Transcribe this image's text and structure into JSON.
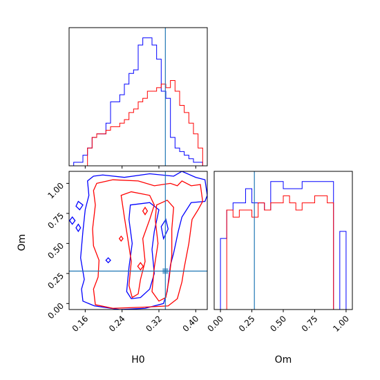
{
  "chart_data": [
    {
      "type": "histogram",
      "panel": "H0 marginal",
      "xlim": [
        0.125,
        0.425
      ],
      "xticks": [
        0.16,
        0.24,
        0.32,
        0.4
      ],
      "truth": 0.334,
      "series": [
        {
          "color": "#0000ff",
          "edges": [
            0.125,
            0.135,
            0.145,
            0.155,
            0.165,
            0.175,
            0.185,
            0.195,
            0.205,
            0.215,
            0.225,
            0.235,
            0.245,
            0.255,
            0.265,
            0.275,
            0.285,
            0.295,
            0.305,
            0.315,
            0.325,
            0.335,
            0.345,
            0.355,
            0.365,
            0.375,
            0.385,
            0.395,
            0.405,
            0.415,
            0.425
          ],
          "values": [
            0,
            1,
            1,
            3,
            5,
            8,
            9,
            9,
            12,
            18,
            18,
            20,
            23,
            26,
            27,
            34,
            36,
            36,
            34,
            30,
            21,
            19,
            8,
            5,
            4,
            3,
            2,
            1,
            1,
            0
          ]
        },
        {
          "color": "#ff0000",
          "edges": [
            0.125,
            0.135,
            0.145,
            0.155,
            0.165,
            0.175,
            0.185,
            0.195,
            0.205,
            0.215,
            0.225,
            0.235,
            0.245,
            0.255,
            0.265,
            0.275,
            0.285,
            0.295,
            0.305,
            0.315,
            0.325,
            0.335,
            0.345,
            0.355,
            0.365,
            0.375,
            0.385,
            0.395,
            0.405,
            0.415,
            0.425
          ],
          "values": [
            0,
            0,
            0,
            0,
            5,
            8,
            9,
            9,
            10,
            11,
            11,
            12,
            13,
            15,
            16,
            18,
            19,
            21,
            21,
            22,
            23,
            22,
            24,
            21,
            17,
            15,
            12,
            9,
            5,
            0
          ]
        }
      ]
    },
    {
      "type": "histogram",
      "panel": "Om marginal",
      "xlabel": "Om",
      "xlim": [
        -0.05,
        1.05
      ],
      "xticks": [
        0.0,
        0.25,
        0.5,
        0.75,
        1.0
      ],
      "ticklabels": [
        "0.00",
        "0.25",
        "0.50",
        "0.75",
        "1.00"
      ],
      "truth": 0.27,
      "series": [
        {
          "color": "#0000ff",
          "edges": [
            -0.05,
            0.0,
            0.05,
            0.1,
            0.15,
            0.2,
            0.25,
            0.3,
            0.35,
            0.4,
            0.45,
            0.5,
            0.55,
            0.6,
            0.65,
            0.7,
            0.75,
            0.8,
            0.85,
            0.9,
            0.95,
            1.0,
            1.05
          ],
          "values": [
            0,
            10,
            14,
            15,
            15,
            17,
            15,
            15,
            14,
            18,
            18,
            17,
            17,
            17,
            18,
            18,
            18,
            18,
            18,
            0,
            11,
            0
          ]
        },
        {
          "color": "#ff0000",
          "edges": [
            -0.05,
            0.0,
            0.05,
            0.1,
            0.15,
            0.2,
            0.25,
            0.3,
            0.35,
            0.4,
            0.45,
            0.5,
            0.55,
            0.6,
            0.65,
            0.7,
            0.75,
            0.8,
            0.85,
            0.9,
            0.95,
            1.0,
            1.05
          ],
          "values": [
            0,
            0,
            14,
            13,
            14,
            14,
            13,
            15,
            14,
            15,
            15,
            16,
            15,
            14,
            15,
            15,
            16,
            16,
            15,
            0,
            0,
            0
          ]
        }
      ]
    },
    {
      "type": "contour",
      "panel": "H0 vs Om",
      "xlabel": "H0",
      "ylabel": "Om",
      "xlim": [
        0.125,
        0.425
      ],
      "ylim": [
        -0.05,
        1.1
      ],
      "xticks": [
        0.16,
        0.24,
        0.32,
        0.4
      ],
      "yticks": [
        0.0,
        0.25,
        0.5,
        0.75,
        1.0
      ],
      "xticklabels": [
        "0.16",
        "0.24",
        "0.32",
        "0.40"
      ],
      "yticklabels": [
        "0.00",
        "0.25",
        "0.50",
        "0.75",
        "1.00"
      ],
      "truth": {
        "x": 0.334,
        "y": 0.27
      },
      "series": [
        {
          "color": "#0000ff",
          "contours": [
            [
              [
                0.178,
                1.06
              ],
              [
                0.198,
                1.07
              ],
              [
                0.245,
                1.05
              ],
              [
                0.3,
                1.08
              ],
              [
                0.352,
                1.06
              ],
              [
                0.37,
                1.1
              ],
              [
                0.4,
                1.05
              ],
              [
                0.42,
                1.03
              ],
              [
                0.425,
                0.9
              ],
              [
                0.42,
                0.85
              ],
              [
                0.39,
                0.84
              ],
              [
                0.37,
                0.72
              ],
              [
                0.362,
                0.6
              ],
              [
                0.352,
                0.42
              ],
              [
                0.345,
                0.32
              ],
              [
                0.338,
                0.1
              ],
              [
                0.33,
                0.0
              ],
              [
                0.29,
                -0.04
              ],
              [
                0.235,
                -0.05
              ],
              [
                0.18,
                -0.02
              ],
              [
                0.155,
                0.02
              ],
              [
                0.152,
                0.12
              ],
              [
                0.158,
                0.2
              ],
              [
                0.15,
                0.38
              ],
              [
                0.155,
                0.6
              ],
              [
                0.16,
                0.78
              ],
              [
                0.168,
                0.9
              ],
              [
                0.165,
                1.02
              ],
              [
                0.178,
                1.06
              ]
            ],
            [
              [
                0.148,
                0.78
              ],
              [
                0.155,
                0.82
              ],
              [
                0.145,
                0.85
              ],
              [
                0.14,
                0.81
              ],
              [
                0.148,
                0.78
              ]
            ],
            [
              [
                0.145,
                0.6
              ],
              [
                0.15,
                0.63
              ],
              [
                0.145,
                0.66
              ],
              [
                0.14,
                0.63
              ],
              [
                0.145,
                0.6
              ]
            ],
            [
              [
                0.132,
                0.66
              ],
              [
                0.138,
                0.69
              ],
              [
                0.132,
                0.72
              ],
              [
                0.126,
                0.69
              ],
              [
                0.132,
                0.66
              ]
            ],
            [
              [
                0.258,
                0.82
              ],
              [
                0.3,
                0.84
              ],
              [
                0.32,
                0.78
              ],
              [
                0.31,
                0.6
              ],
              [
                0.305,
                0.45
              ],
              [
                0.31,
                0.25
              ],
              [
                0.3,
                0.12
              ],
              [
                0.28,
                0.05
              ],
              [
                0.26,
                0.04
              ],
              [
                0.25,
                0.1
              ],
              [
                0.255,
                0.3
              ],
              [
                0.262,
                0.5
              ],
              [
                0.255,
                0.7
              ],
              [
                0.258,
                0.82
              ]
            ],
            [
              [
                0.33,
                0.54
              ],
              [
                0.34,
                0.62
              ],
              [
                0.335,
                0.7
              ],
              [
                0.325,
                0.64
              ],
              [
                0.33,
                0.54
              ]
            ],
            [
              [
                0.21,
                0.34
              ],
              [
                0.215,
                0.36
              ],
              [
                0.21,
                0.38
              ],
              [
                0.205,
                0.36
              ],
              [
                0.21,
                0.34
              ]
            ]
          ]
        },
        {
          "color": "#ff0000",
          "contours": [
            [
              [
                0.185,
                1.0
              ],
              [
                0.22,
                1.03
              ],
              [
                0.275,
                1.02
              ],
              [
                0.31,
                0.98
              ],
              [
                0.345,
                1.0
              ],
              [
                0.36,
                0.98
              ],
              [
                0.37,
                1.02
              ],
              [
                0.39,
                0.98
              ],
              [
                0.41,
                0.99
              ],
              [
                0.415,
                0.85
              ],
              [
                0.405,
                0.78
              ],
              [
                0.392,
                0.7
              ],
              [
                0.385,
                0.5
              ],
              [
                0.375,
                0.3
              ],
              [
                0.37,
                0.18
              ],
              [
                0.36,
                0.04
              ],
              [
                0.34,
                -0.02
              ],
              [
                0.29,
                -0.03
              ],
              [
                0.22,
                -0.04
              ],
              [
                0.182,
                -0.01
              ],
              [
                0.178,
                0.12
              ],
              [
                0.188,
                0.22
              ],
              [
                0.19,
                0.36
              ],
              [
                0.178,
                0.48
              ],
              [
                0.176,
                0.62
              ],
              [
                0.182,
                0.82
              ],
              [
                0.178,
                0.94
              ],
              [
                0.185,
                1.0
              ]
            ],
            [
              [
                0.238,
                0.9
              ],
              [
                0.26,
                0.93
              ],
              [
                0.3,
                0.9
              ],
              [
                0.31,
                0.82
              ],
              [
                0.3,
                0.7
              ],
              [
                0.285,
                0.54
              ],
              [
                0.29,
                0.35
              ],
              [
                0.28,
                0.2
              ],
              [
                0.275,
                0.08
              ],
              [
                0.262,
                0.05
              ],
              [
                0.255,
                0.15
              ],
              [
                0.26,
                0.35
              ],
              [
                0.252,
                0.55
              ],
              [
                0.245,
                0.72
              ],
              [
                0.238,
                0.9
              ]
            ],
            [
              [
                0.315,
                0.82
              ],
              [
                0.338,
                0.86
              ],
              [
                0.352,
                0.8
              ],
              [
                0.348,
                0.62
              ],
              [
                0.348,
                0.4
              ],
              [
                0.342,
                0.2
              ],
              [
                0.335,
                0.05
              ],
              [
                0.32,
                0.02
              ],
              [
                0.305,
                0.1
              ],
              [
                0.31,
                0.3
              ],
              [
                0.318,
                0.5
              ],
              [
                0.312,
                0.7
              ],
              [
                0.315,
                0.82
              ]
            ],
            [
              [
                0.29,
                0.74
              ],
              [
                0.295,
                0.77
              ],
              [
                0.29,
                0.8
              ],
              [
                0.285,
                0.77
              ],
              [
                0.29,
                0.74
              ]
            ],
            [
              [
                0.28,
                0.28
              ],
              [
                0.286,
                0.31
              ],
              [
                0.28,
                0.34
              ],
              [
                0.274,
                0.31
              ],
              [
                0.28,
                0.28
              ]
            ],
            [
              [
                0.238,
                0.52
              ],
              [
                0.242,
                0.54
              ],
              [
                0.238,
                0.56
              ],
              [
                0.234,
                0.54
              ],
              [
                0.238,
                0.52
              ]
            ]
          ]
        }
      ]
    }
  ]
}
